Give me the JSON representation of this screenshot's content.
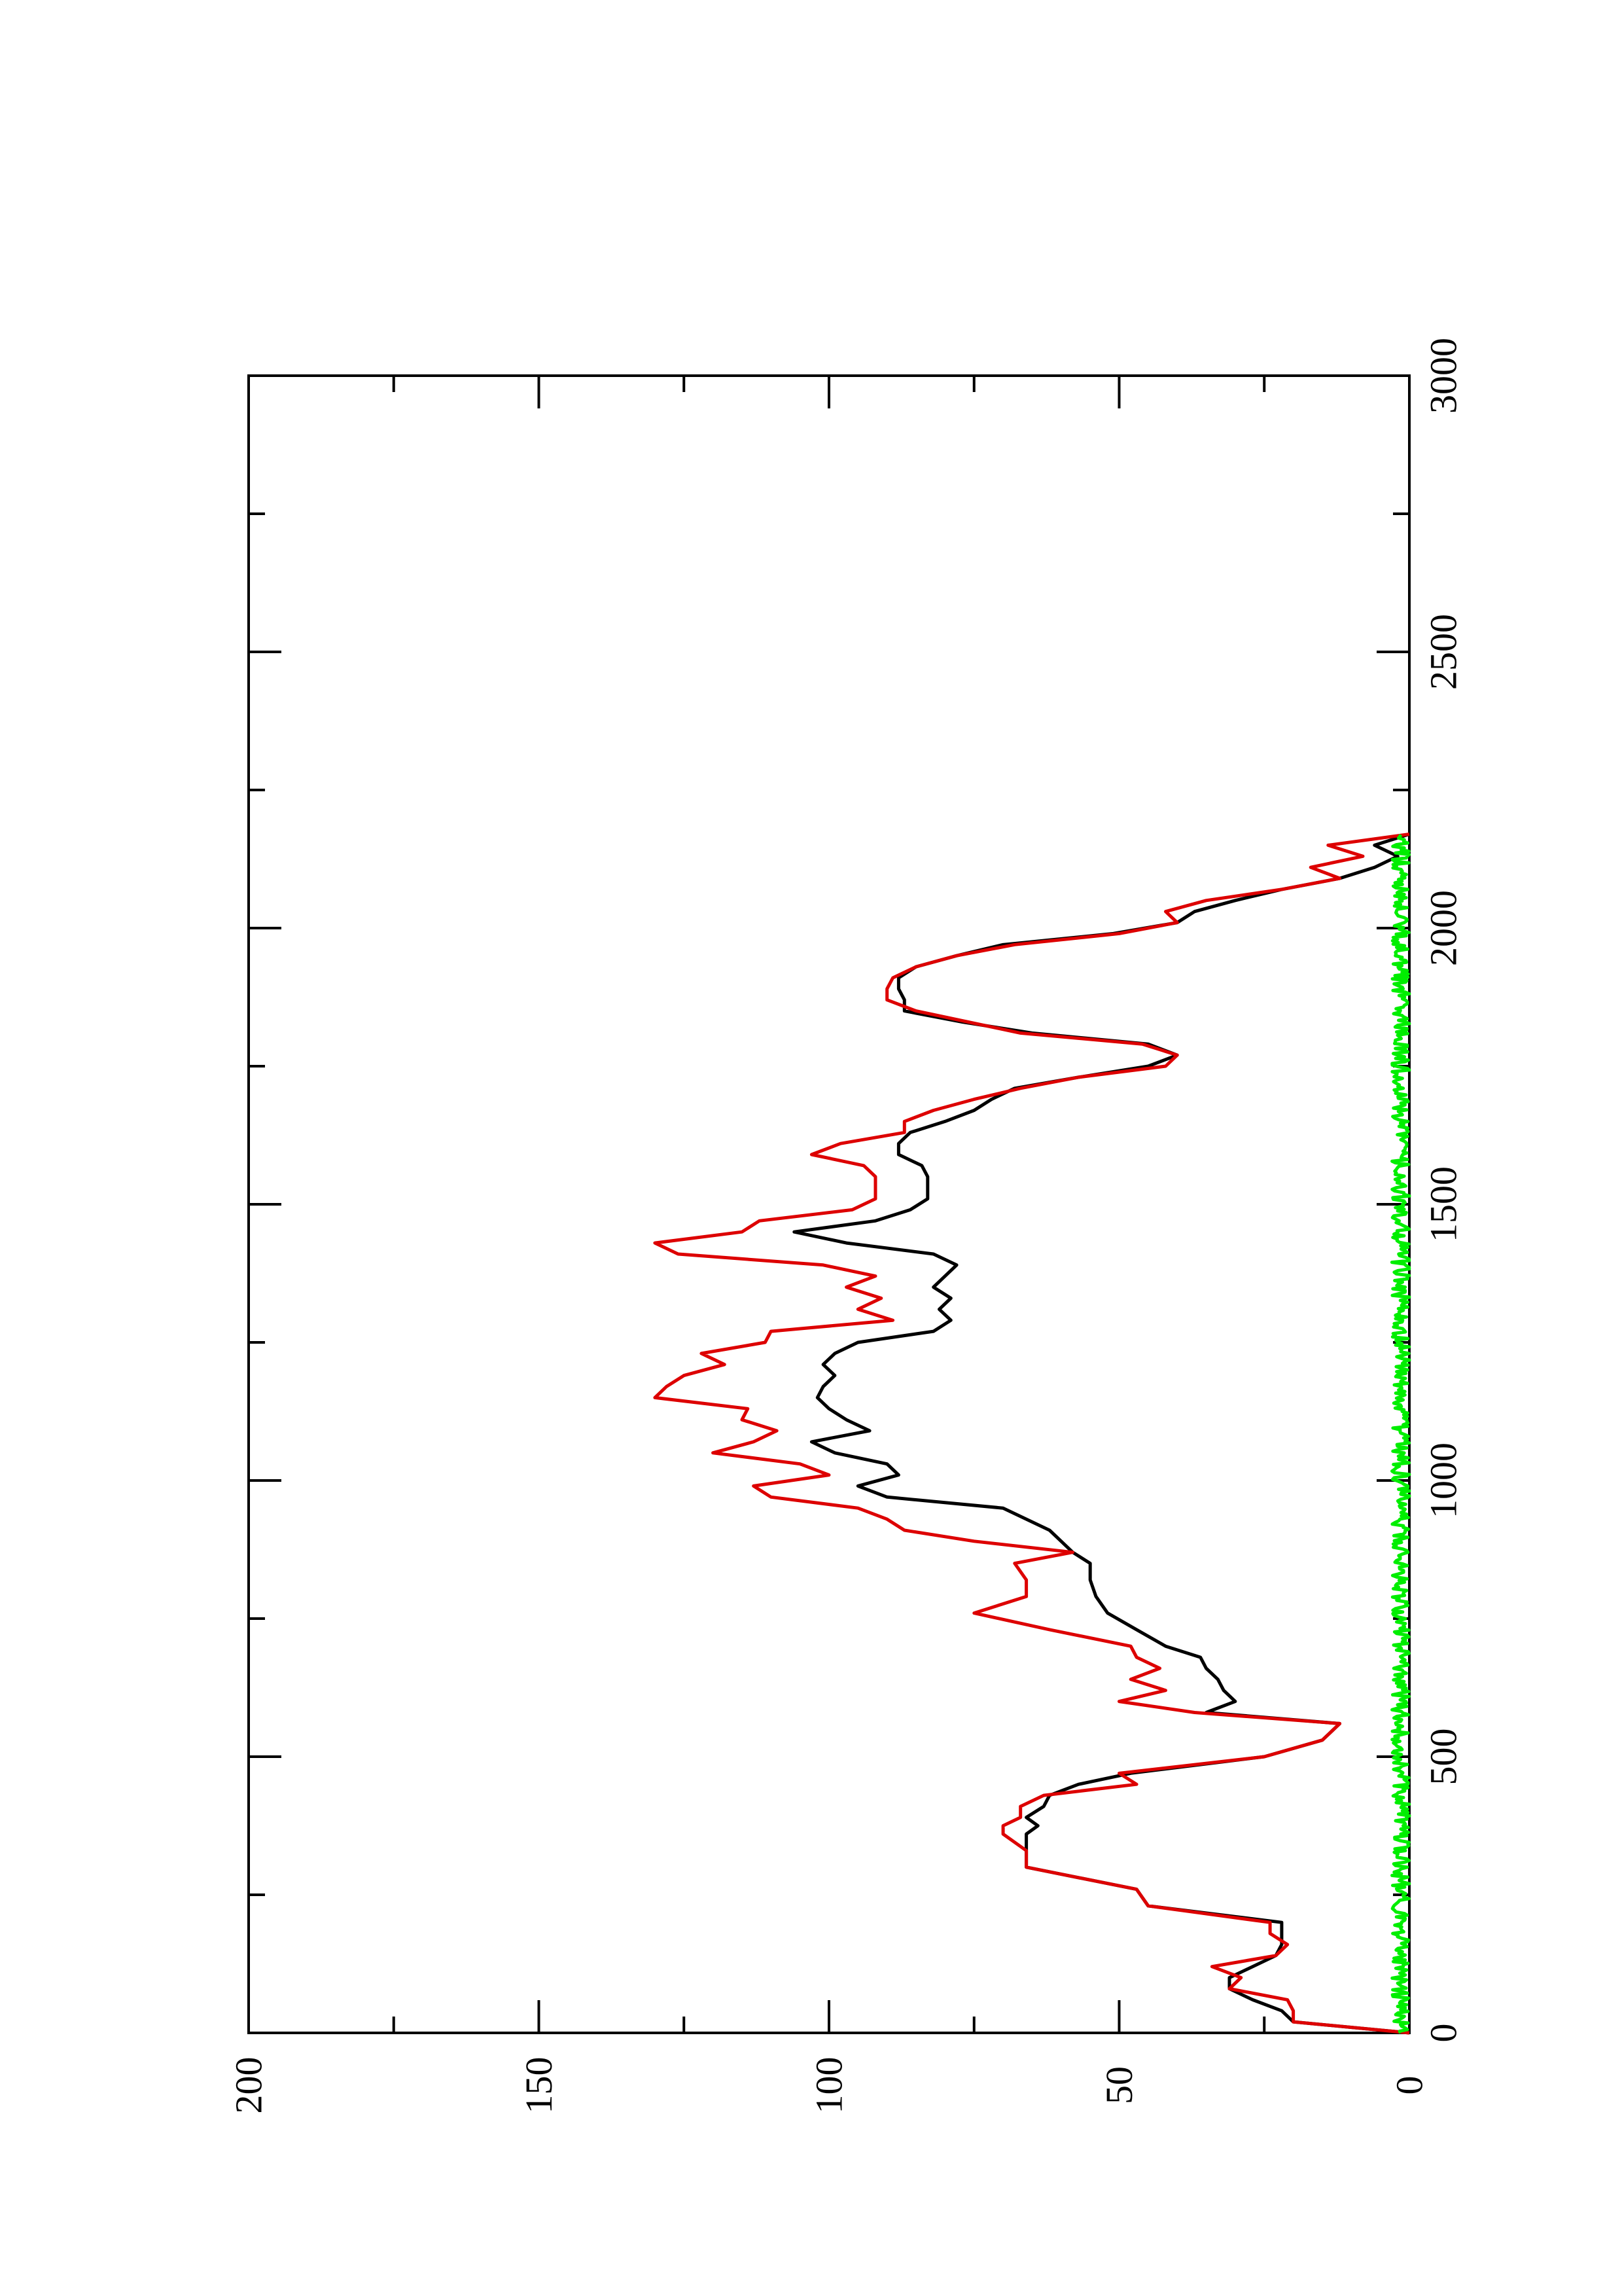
{
  "chart_data": {
    "type": "line",
    "title": "",
    "xlabel": "",
    "ylabel": "",
    "xlim": [
      0,
      3000
    ],
    "ylim": [
      0,
      200
    ],
    "x_ticks": [
      0,
      500,
      1000,
      1500,
      2000,
      2500,
      3000
    ],
    "x_tick_labels": [
      "0",
      "500",
      "1000",
      "1500",
      "2000",
      "2500",
      "3000"
    ],
    "x_minor_ticks": [
      250,
      750,
      1250,
      1750,
      2250,
      2750
    ],
    "y_ticks": [
      0,
      50,
      100,
      150,
      200
    ],
    "y_tick_labels": [
      "0",
      "50",
      "100",
      "150",
      "200"
    ],
    "y_minor_ticks": [
      25,
      75,
      125,
      175
    ],
    "grid": false,
    "legend": "none",
    "orientation": "rotated 90° counter-clockwise (x runs bottom-to-top, y runs right-to-left)",
    "series": [
      {
        "color": "#000000",
        "x": [
          0,
          20,
          40,
          60,
          80,
          100,
          120,
          140,
          160,
          180,
          200,
          230,
          260,
          300,
          330,
          360,
          375,
          390,
          410,
          430,
          450,
          470,
          500,
          530,
          560,
          580,
          600,
          620,
          640,
          660,
          680,
          700,
          730,
          760,
          790,
          820,
          850,
          870,
          890,
          910,
          930,
          950,
          970,
          990,
          1010,
          1030,
          1050,
          1070,
          1090,
          1110,
          1130,
          1150,
          1170,
          1190,
          1210,
          1230,
          1250,
          1270,
          1290,
          1310,
          1330,
          1350,
          1370,
          1390,
          1410,
          1430,
          1450,
          1470,
          1490,
          1510,
          1530,
          1550,
          1570,
          1590,
          1610,
          1630,
          1650,
          1670,
          1690,
          1710,
          1730,
          1750,
          1770,
          1790,
          1810,
          1830,
          1850,
          1870,
          1890,
          1910,
          1930,
          1950,
          1970,
          1990,
          2010,
          2030,
          2050,
          2070,
          2090,
          2110,
          2130,
          2150,
          2170
        ],
        "y": [
          0,
          20,
          22,
          27,
          31,
          31,
          27,
          23,
          22,
          22,
          22,
          45,
          47,
          66,
          66,
          66,
          64,
          66,
          63,
          62,
          57,
          48,
          25,
          15,
          12,
          35,
          30,
          32,
          33,
          35,
          36,
          42,
          47,
          52,
          54,
          55,
          55,
          58,
          60,
          62,
          66,
          70,
          90,
          95,
          88,
          90,
          99,
          103,
          93,
          97,
          100,
          102,
          101,
          99,
          101,
          99,
          95,
          82,
          79,
          81,
          79,
          82,
          80,
          78,
          82,
          97,
          106,
          92,
          86,
          83,
          83,
          83,
          84,
          88,
          88,
          86,
          80,
          75,
          72,
          68,
          57,
          45,
          40,
          45,
          65,
          77,
          87,
          87,
          88,
          88,
          85,
          78,
          70,
          51,
          40,
          37,
          30,
          22,
          12,
          6,
          2,
          6,
          0
        ]
      },
      {
        "color": "#dd0000",
        "x": [
          0,
          20,
          40,
          60,
          80,
          100,
          120,
          140,
          160,
          180,
          200,
          230,
          260,
          300,
          330,
          360,
          375,
          390,
          410,
          430,
          450,
          470,
          500,
          530,
          560,
          580,
          600,
          620,
          640,
          660,
          680,
          700,
          730,
          760,
          790,
          820,
          850,
          870,
          890,
          910,
          930,
          950,
          970,
          990,
          1010,
          1030,
          1050,
          1070,
          1090,
          1110,
          1130,
          1150,
          1170,
          1190,
          1210,
          1230,
          1250,
          1270,
          1290,
          1310,
          1330,
          1350,
          1370,
          1390,
          1410,
          1430,
          1450,
          1470,
          1490,
          1510,
          1530,
          1550,
          1570,
          1590,
          1610,
          1630,
          1650,
          1670,
          1690,
          1710,
          1730,
          1750,
          1770,
          1790,
          1810,
          1830,
          1850,
          1870,
          1890,
          1910,
          1930,
          1950,
          1970,
          1990,
          2010,
          2030,
          2050,
          2070,
          2090,
          2110,
          2130,
          2150,
          2170
        ],
        "y": [
          0,
          20,
          20,
          21,
          31,
          29,
          34,
          23,
          21,
          24,
          24,
          45,
          47,
          66,
          66,
          70,
          70,
          67,
          67,
          63,
          47,
          50,
          25,
          15,
          12,
          37,
          50,
          42,
          48,
          43,
          47,
          48,
          62,
          75,
          66,
          66,
          68,
          58,
          75,
          87,
          90,
          95,
          110,
          113,
          100,
          105,
          120,
          113,
          109,
          115,
          114,
          130,
          128,
          125,
          118,
          122,
          111,
          110,
          89,
          95,
          91,
          97,
          92,
          101,
          126,
          130,
          115,
          112,
          96,
          92,
          92,
          92,
          94,
          103,
          98,
          87,
          87,
          82,
          75,
          67,
          57,
          42,
          40,
          46,
          67,
          76,
          85,
          90,
          90,
          89,
          85,
          78,
          68,
          50,
          40,
          42,
          35,
          22,
          12,
          17,
          8,
          14,
          0
        ]
      },
      {
        "color": "#00ee00",
        "x_range": [
          0,
          2170
        ],
        "y_range": [
          0,
          3
        ],
        "description": "dense noisy trace fluctuating near zero"
      }
    ]
  }
}
